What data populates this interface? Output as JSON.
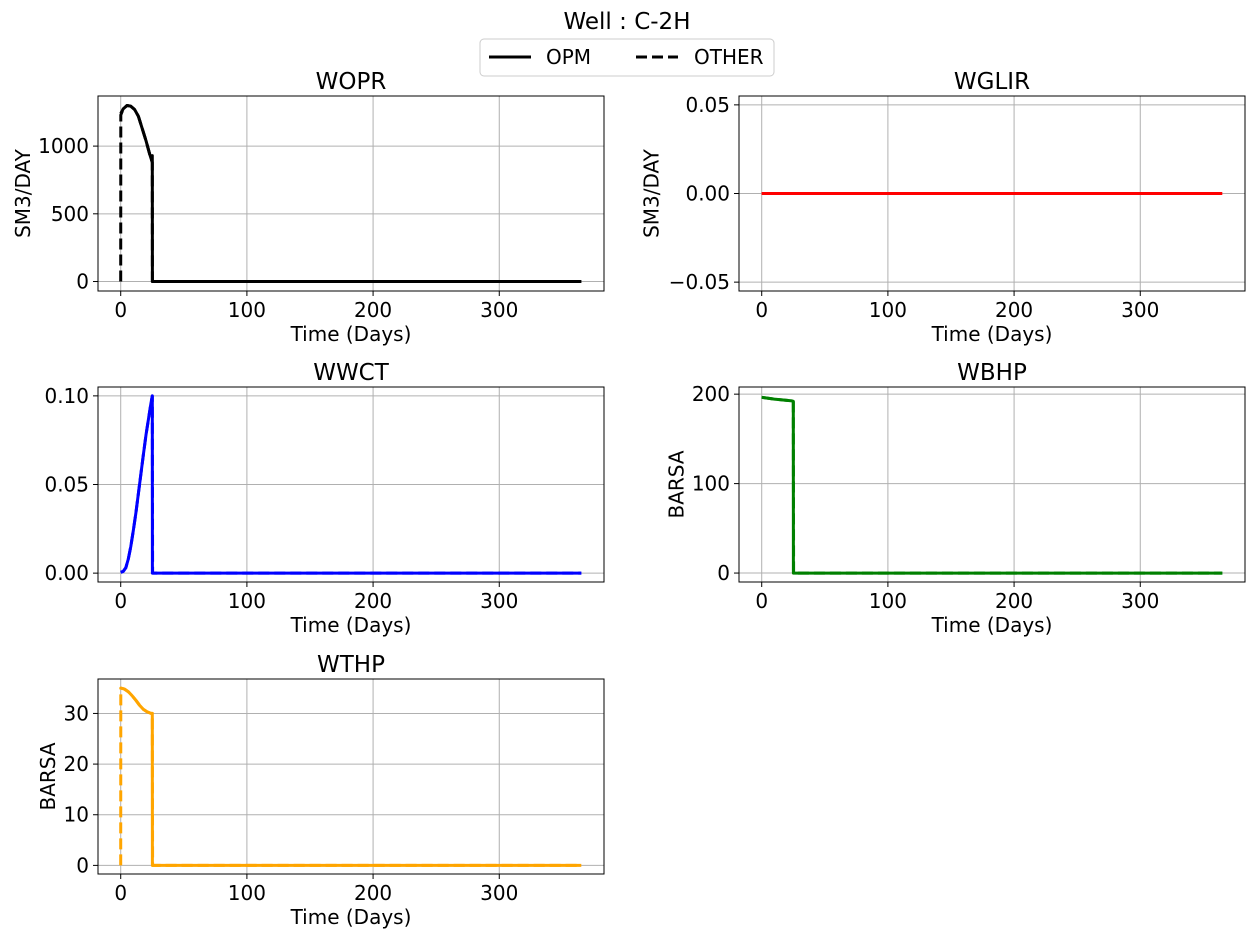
{
  "suptitle": "Well : C-2H",
  "legend": {
    "placement": "top-center",
    "entries": [
      {
        "label": "OPM",
        "style": "solid"
      },
      {
        "label": "OTHER",
        "style": "dashed"
      }
    ]
  },
  "chart_data": [
    {
      "type": "line",
      "title": "WOPR",
      "xlabel": "Time (Days)",
      "ylabel": "SM3/DAY",
      "color": "#000000",
      "xlim": [
        -18,
        383
      ],
      "ylim": [
        -70,
        1370
      ],
      "xticks": [
        0,
        100,
        200,
        300
      ],
      "xticklabels": [
        "0",
        "100",
        "200",
        "300"
      ],
      "yticks": [
        0,
        500,
        1000
      ],
      "yticklabels": [
        "0",
        "500",
        "1000"
      ],
      "grid": true,
      "series": [
        {
          "name": "OPM",
          "style": "solid",
          "x": [
            0,
            2,
            5,
            8,
            11,
            14,
            17,
            20,
            23,
            25,
            25,
            25.1,
            365
          ],
          "y": [
            1240,
            1275,
            1300,
            1295,
            1270,
            1220,
            1130,
            1040,
            940,
            880,
            930,
            0,
            0
          ]
        },
        {
          "name": "OTHER",
          "style": "dashed",
          "x": [
            0,
            0.1,
            2,
            5,
            8,
            11,
            14,
            17,
            20,
            23,
            25,
            25.1,
            365
          ],
          "y": [
            0,
            1230,
            1275,
            1300,
            1295,
            1270,
            1220,
            1130,
            1040,
            940,
            880,
            0,
            0
          ]
        }
      ]
    },
    {
      "type": "line",
      "title": "WGLIR",
      "xlabel": "Time (Days)",
      "ylabel": "SM3/DAY",
      "color": "#ff0000",
      "xlim": [
        -18,
        383
      ],
      "ylim": [
        -0.055,
        0.055
      ],
      "xticks": [
        0,
        100,
        200,
        300
      ],
      "xticklabels": [
        "0",
        "100",
        "200",
        "300"
      ],
      "yticks": [
        -0.05,
        0,
        0.05
      ],
      "yticklabels": [
        "−0.05",
        "0.00",
        "0.05"
      ],
      "grid": true,
      "series": [
        {
          "name": "OPM",
          "style": "solid",
          "x": [
            0,
            365
          ],
          "y": [
            0,
            0
          ]
        },
        {
          "name": "OTHER",
          "style": "dashed",
          "x": [
            0,
            365
          ],
          "y": [
            0,
            0
          ]
        }
      ]
    },
    {
      "type": "line",
      "title": "WWCT",
      "xlabel": "Time (Days)",
      "ylabel": "",
      "color": "#0000ff",
      "xlim": [
        -18,
        383
      ],
      "ylim": [
        -0.005,
        0.105
      ],
      "xticks": [
        0,
        100,
        200,
        300
      ],
      "xticklabels": [
        "0",
        "100",
        "200",
        "300"
      ],
      "yticks": [
        0,
        0.05,
        0.1
      ],
      "yticklabels": [
        "0.00",
        "0.05",
        "0.10"
      ],
      "grid": true,
      "series": [
        {
          "name": "OPM",
          "style": "solid",
          "x": [
            0,
            2,
            4,
            6,
            8,
            10,
            12,
            14,
            16,
            18,
            20,
            22,
            24,
            25,
            25.1,
            365
          ],
          "y": [
            0.0005,
            0.001,
            0.003,
            0.008,
            0.015,
            0.024,
            0.034,
            0.045,
            0.056,
            0.067,
            0.078,
            0.087,
            0.096,
            0.1,
            0,
            0
          ]
        },
        {
          "name": "OTHER",
          "style": "dashed",
          "x": [
            0,
            2,
            4,
            6,
            8,
            10,
            12,
            14,
            16,
            18,
            20,
            22,
            24,
            25,
            25.3,
            365
          ],
          "y": [
            0.0005,
            0.001,
            0.003,
            0.008,
            0.015,
            0.024,
            0.034,
            0.045,
            0.056,
            0.067,
            0.078,
            0.087,
            0.096,
            0.1,
            0,
            0
          ]
        }
      ]
    },
    {
      "type": "line",
      "title": "WBHP",
      "xlabel": "Time (Days)",
      "ylabel": "BARSA",
      "color": "#008000",
      "xlim": [
        -18,
        383
      ],
      "ylim": [
        -10,
        208
      ],
      "xticks": [
        0,
        100,
        200,
        300
      ],
      "xticklabels": [
        "0",
        "100",
        "200",
        "300"
      ],
      "yticks": [
        0,
        100,
        200
      ],
      "yticklabels": [
        "0",
        "100",
        "200"
      ],
      "grid": true,
      "series": [
        {
          "name": "OPM",
          "style": "solid",
          "x": [
            0,
            10,
            20,
            24,
            25,
            25.1,
            365
          ],
          "y": [
            196.5,
            194.5,
            193,
            192.5,
            192,
            0,
            0
          ]
        },
        {
          "name": "OTHER",
          "style": "dashed",
          "x": [
            0,
            10,
            20,
            24,
            25,
            25.3,
            365
          ],
          "y": [
            196.5,
            194.5,
            193,
            192.5,
            192,
            0,
            0
          ]
        }
      ]
    },
    {
      "type": "line",
      "title": "WTHP",
      "xlabel": "Time (Days)",
      "ylabel": "BARSA",
      "color": "#ffa500",
      "xlim": [
        -18,
        383
      ],
      "ylim": [
        -1.7,
        36.8
      ],
      "xticks": [
        0,
        100,
        200,
        300
      ],
      "xticklabels": [
        "0",
        "100",
        "200",
        "300"
      ],
      "yticks": [
        0,
        10,
        20,
        30
      ],
      "yticklabels": [
        "0",
        "10",
        "20",
        "30"
      ],
      "grid": true,
      "series": [
        {
          "name": "OPM",
          "style": "solid",
          "x": [
            0,
            3,
            6,
            9,
            12,
            15,
            18,
            21,
            24,
            25,
            25.1,
            365
          ],
          "y": [
            35,
            34.8,
            34.3,
            33.5,
            32.6,
            31.6,
            30.8,
            30.3,
            30,
            30,
            0,
            0
          ]
        },
        {
          "name": "OTHER",
          "style": "dashed",
          "x": [
            0,
            0.1,
            3,
            6,
            9,
            12,
            15,
            18,
            21,
            24,
            25,
            25.3,
            365
          ],
          "y": [
            0,
            35,
            34.8,
            34.3,
            33.5,
            32.6,
            31.6,
            30.8,
            30.3,
            30,
            30,
            0,
            0
          ]
        }
      ]
    }
  ]
}
